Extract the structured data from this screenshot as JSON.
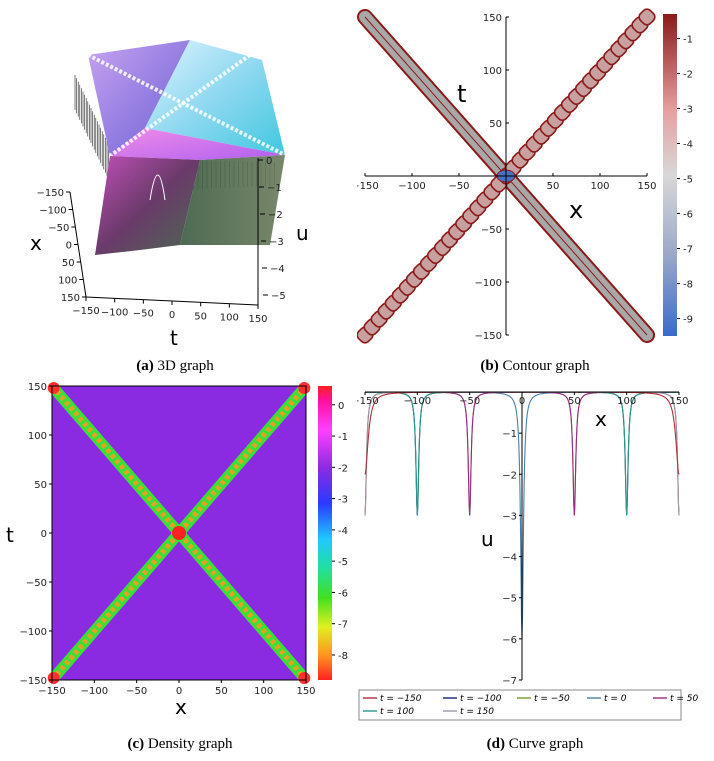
{
  "captions": {
    "a": {
      "letter": "(a)",
      "text": "3D graph"
    },
    "b": {
      "letter": "(b)",
      "text": "Contour graph"
    },
    "c": {
      "letter": "(c)",
      "text": "Density graph"
    },
    "d": {
      "letter": "(d)",
      "text": "Curve graph"
    }
  },
  "colors": {
    "dark_red": "#8b1a1a",
    "purple": "#8a2be2",
    "red": "#ff2020"
  },
  "chart_data": [
    {
      "id": "a",
      "type": "surface",
      "xlabel": "x",
      "ylabel": "t",
      "zlabel": "u",
      "x_ticks": [
        "−150",
        "−100",
        "−50",
        "0",
        "50",
        "100",
        "150"
      ],
      "t_ticks": [
        "−150",
        "−100",
        "−50",
        "0",
        "50",
        "100",
        "150"
      ],
      "u_ticks": [
        "0",
        "−1",
        "−2",
        "−3",
        "−4",
        "−5"
      ],
      "xlim": [
        -150,
        150
      ],
      "tlim": [
        -150,
        150
      ],
      "ulim": [
        -5,
        0
      ]
    },
    {
      "id": "b",
      "type": "contour",
      "xlabel": "x",
      "ylabel": "t",
      "xlim": [
        -150,
        150
      ],
      "ylim": [
        -150,
        150
      ],
      "x_ticks": [
        "−150",
        "−100",
        "−50",
        "0",
        "50",
        "100",
        "150"
      ],
      "y_ticks": [
        "150",
        "100",
        "50",
        "0",
        "−50",
        "−100",
        "−150"
      ],
      "colorbar_ticks": [
        "-1",
        "-2",
        "-3",
        "-4",
        "-5",
        "-6",
        "-7",
        "-8",
        "-9"
      ],
      "colorbar_range": [
        -9.5,
        -0.3
      ]
    },
    {
      "id": "c",
      "type": "heatmap",
      "xlabel": "x",
      "ylabel": "t",
      "xlim": [
        -150,
        150
      ],
      "ylim": [
        -150,
        150
      ],
      "x_ticks": [
        "−150",
        "−100",
        "−50",
        "0",
        "50",
        "100",
        "150"
      ],
      "y_ticks": [
        "150",
        "100",
        "50",
        "0",
        "−50",
        "−100",
        "−150"
      ],
      "colorbar_ticks": [
        "0",
        "-1",
        "-2",
        "-3",
        "-4",
        "-5",
        "-6",
        "-7",
        "-8"
      ],
      "colorbar_range": [
        -8.8,
        0.6
      ]
    },
    {
      "id": "d",
      "type": "line",
      "xlabel": "x",
      "ylabel": "u",
      "xlim": [
        -150,
        150
      ],
      "ylim": [
        -7,
        0
      ],
      "x_ticks": [
        "−150",
        "−100",
        "−50",
        "0",
        "50",
        "100",
        "150"
      ],
      "y_ticks": [
        "−1",
        "−2",
        "−3",
        "−4",
        "−5",
        "−6",
        "−7"
      ],
      "legend_position": "bottom",
      "series": [
        {
          "name": "t = −150",
          "t": -150,
          "color": "#b0303a"
        },
        {
          "name": "t = −100",
          "t": -100,
          "color": "#1a237e"
        },
        {
          "name": "t = −50",
          "t": -50,
          "color": "#7a9a2a"
        },
        {
          "name": "t = 0",
          "t": 0,
          "color": "#4a7fa8"
        },
        {
          "name": "t = 50",
          "t": 50,
          "color": "#9a2a8a"
        },
        {
          "name": "t = 100",
          "t": 100,
          "color": "#2a9a8a"
        },
        {
          "name": "t = 150",
          "t": 150,
          "color": "#9a9aaa"
        }
      ]
    }
  ]
}
